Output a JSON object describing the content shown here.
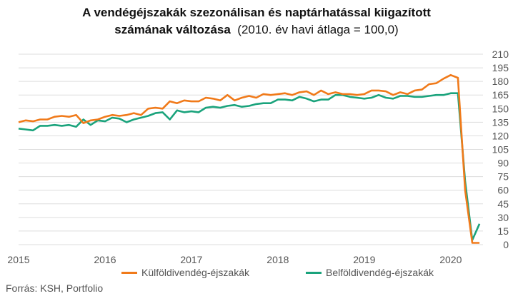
{
  "title": {
    "line1": "A vendégéjszakák szezonálisan és naptárhatással kiigazított",
    "line2_bold": "számának változása",
    "line2_rest": "(2010. év havi átlaga = 100,0)"
  },
  "source": "Forrás: KSH, Portfolio",
  "colors": {
    "series1": "#f07a1a",
    "series2": "#1aa37c",
    "grid": "#dddddd"
  },
  "chart_data": {
    "type": "line",
    "title": "A vendégéjszakák szezonálisan és naptárhatással kiigazított számának változása (2010. év havi átlaga = 100,0)",
    "x_start": "2015-01",
    "x_end": "2020-05",
    "x_ticks": [
      "2015",
      "2016",
      "2017",
      "2018",
      "2019",
      "2020"
    ],
    "y_ticks": [
      "0",
      "15",
      "30",
      "45",
      "60",
      "75",
      "90",
      "105",
      "120",
      "135",
      "150",
      "165",
      "180",
      "195",
      "210"
    ],
    "ylim": [
      0,
      210
    ],
    "grid": "horizontal",
    "legend_position": "bottom",
    "series": [
      {
        "name": "Külföldivendég-éjszakák",
        "values": [
          135,
          137,
          136,
          138,
          138,
          141,
          142,
          141,
          143,
          134,
          137,
          138,
          141,
          143,
          142,
          143,
          145,
          143,
          150,
          151,
          150,
          158,
          156,
          159,
          158,
          158,
          162,
          161,
          159,
          165,
          159,
          162,
          164,
          162,
          166,
          165,
          166,
          167,
          165,
          168,
          169,
          165,
          170,
          166,
          168,
          166,
          166,
          165,
          166,
          170,
          170,
          169,
          165,
          168,
          166,
          170,
          171,
          177,
          178,
          183,
          187,
          184,
          60,
          2,
          2
        ]
      },
      {
        "name": "Belföldivendég-éjszakák",
        "values": [
          128,
          127,
          126,
          131,
          131,
          132,
          131,
          132,
          130,
          138,
          132,
          137,
          136,
          140,
          139,
          135,
          138,
          140,
          142,
          145,
          146,
          138,
          148,
          146,
          147,
          146,
          151,
          152,
          151,
          153,
          154,
          152,
          153,
          155,
          156,
          156,
          160,
          160,
          159,
          163,
          161,
          158,
          160,
          160,
          165,
          165,
          163,
          162,
          161,
          162,
          165,
          162,
          161,
          164,
          164,
          163,
          163,
          164,
          165,
          165,
          167,
          167,
          70,
          5,
          23
        ]
      }
    ]
  }
}
